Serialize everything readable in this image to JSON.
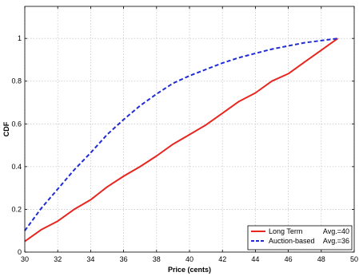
{
  "chart_data": {
    "type": "line",
    "title": "",
    "xlabel": "Price (cents)",
    "ylabel": "CDF",
    "xlim": [
      30,
      50
    ],
    "ylim": [
      0,
      1.15
    ],
    "xticks": [
      "30",
      "32",
      "34",
      "36",
      "38",
      "40",
      "42",
      "44",
      "46",
      "48",
      "50"
    ],
    "yticks": [
      "0",
      "0.2",
      "0.4",
      "0.6",
      "0.8",
      "1"
    ],
    "grid": true,
    "legend_position": "bottom-right",
    "series": [
      {
        "name": "Long Term",
        "legend_label": "Long Term",
        "legend_avg": "Avg.=40",
        "color": "#e8251f",
        "style": "solid",
        "x": [
          30,
          31,
          32,
          33,
          34,
          35,
          36,
          37,
          38,
          39,
          40,
          41,
          42,
          43,
          44,
          45,
          46,
          47,
          48,
          49
        ],
        "values": [
          0.05,
          0.105,
          0.145,
          0.2,
          0.245,
          0.305,
          0.355,
          0.4,
          0.45,
          0.505,
          0.55,
          0.595,
          0.65,
          0.705,
          0.745,
          0.8,
          0.835,
          0.89,
          0.945,
          1.0
        ]
      },
      {
        "name": "Auction-based",
        "legend_label": "Auction-based",
        "legend_avg": "Avg.=36",
        "color": "#1f2bd8",
        "style": "dashed",
        "x": [
          30,
          31,
          32,
          33,
          34,
          35,
          36,
          37,
          38,
          39,
          40,
          41,
          42,
          43,
          44,
          45,
          46,
          47,
          48,
          49
        ],
        "values": [
          0.1,
          0.205,
          0.295,
          0.385,
          0.465,
          0.55,
          0.62,
          0.685,
          0.74,
          0.79,
          0.825,
          0.855,
          0.885,
          0.91,
          0.93,
          0.95,
          0.965,
          0.98,
          0.99,
          1.0
        ]
      }
    ]
  }
}
